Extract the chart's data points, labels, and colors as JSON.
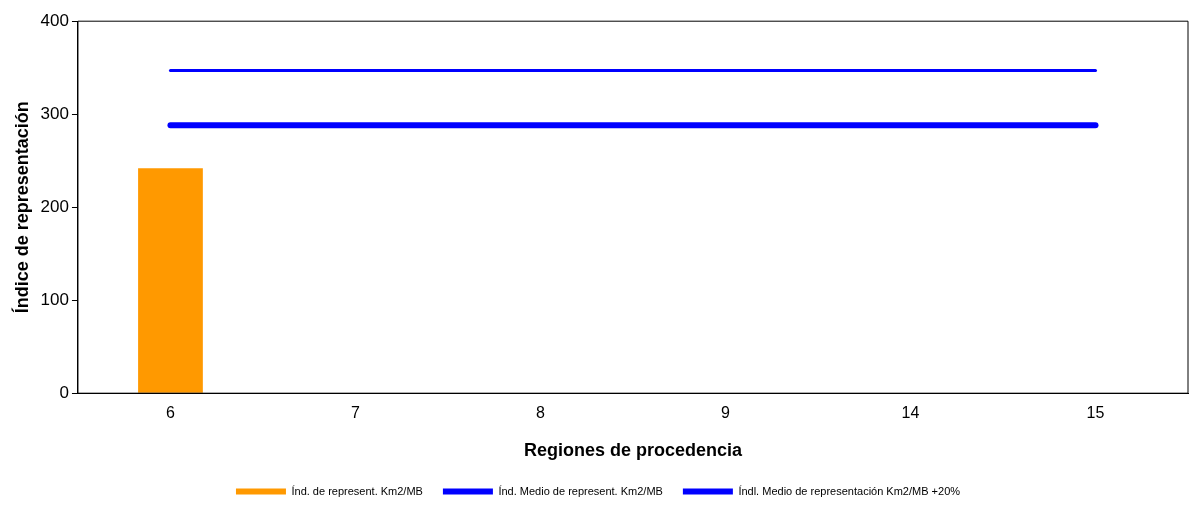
{
  "chart_data": {
    "type": "bar",
    "xlabel": "Regiones de procedencia",
    "ylabel": "Índice de representación",
    "categories": [
      "6",
      "7",
      "8",
      "9",
      "14",
      "15"
    ],
    "series": [
      {
        "name": "Índ. de represent. Km2/MB",
        "color": "#ff9900",
        "values": [
          242,
          null,
          null,
          null,
          null,
          null
        ]
      },
      {
        "name": "Índ. Medio de represent. Km2/MB",
        "type": "line",
        "color": "#0000ff",
        "values": [
          288,
          288,
          288,
          288,
          288,
          288
        ]
      },
      {
        "name": "Índl. Medio de representación Km2/MB +20%",
        "type": "line",
        "color": "#0000ff",
        "values": [
          347,
          347,
          347,
          347,
          347,
          347
        ]
      }
    ],
    "ylim": [
      0,
      400
    ],
    "yticks": [
      0,
      100,
      200,
      300,
      400
    ],
    "grid": false,
    "legend": "bottom",
    "marker": "none",
    "line_style": "solid"
  }
}
